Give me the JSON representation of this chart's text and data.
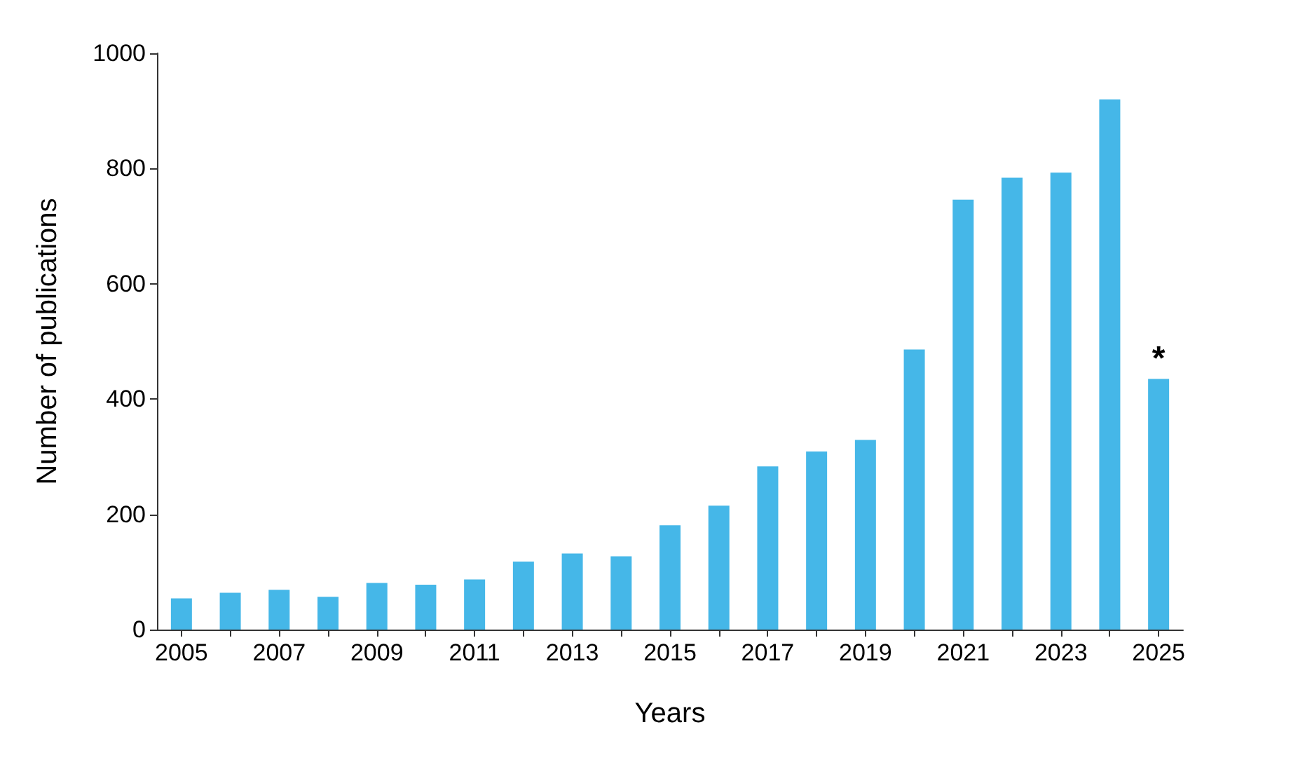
{
  "chart_data": {
    "type": "bar",
    "xlabel": "Years",
    "ylabel": "Number of publications",
    "categories": [
      "2005",
      null,
      "2007",
      null,
      "2009",
      null,
      "2011",
      null,
      "2013",
      null,
      "2015",
      null,
      "2017",
      null,
      "2019",
      null,
      "2021",
      null,
      "2023",
      null,
      "2025"
    ],
    "values": [
      54,
      64,
      69,
      57,
      81,
      78,
      87,
      118,
      132,
      127,
      181,
      215,
      283,
      309,
      329,
      486,
      746,
      784,
      793,
      920,
      435
    ],
    "color": "#45b7e8",
    "ylim": [
      0,
      1000
    ],
    "yticks": [
      0,
      200,
      400,
      600,
      800,
      1000
    ],
    "grid": false,
    "annotations": [
      {
        "text": "*",
        "x": "2025",
        "y": 435
      }
    ]
  }
}
